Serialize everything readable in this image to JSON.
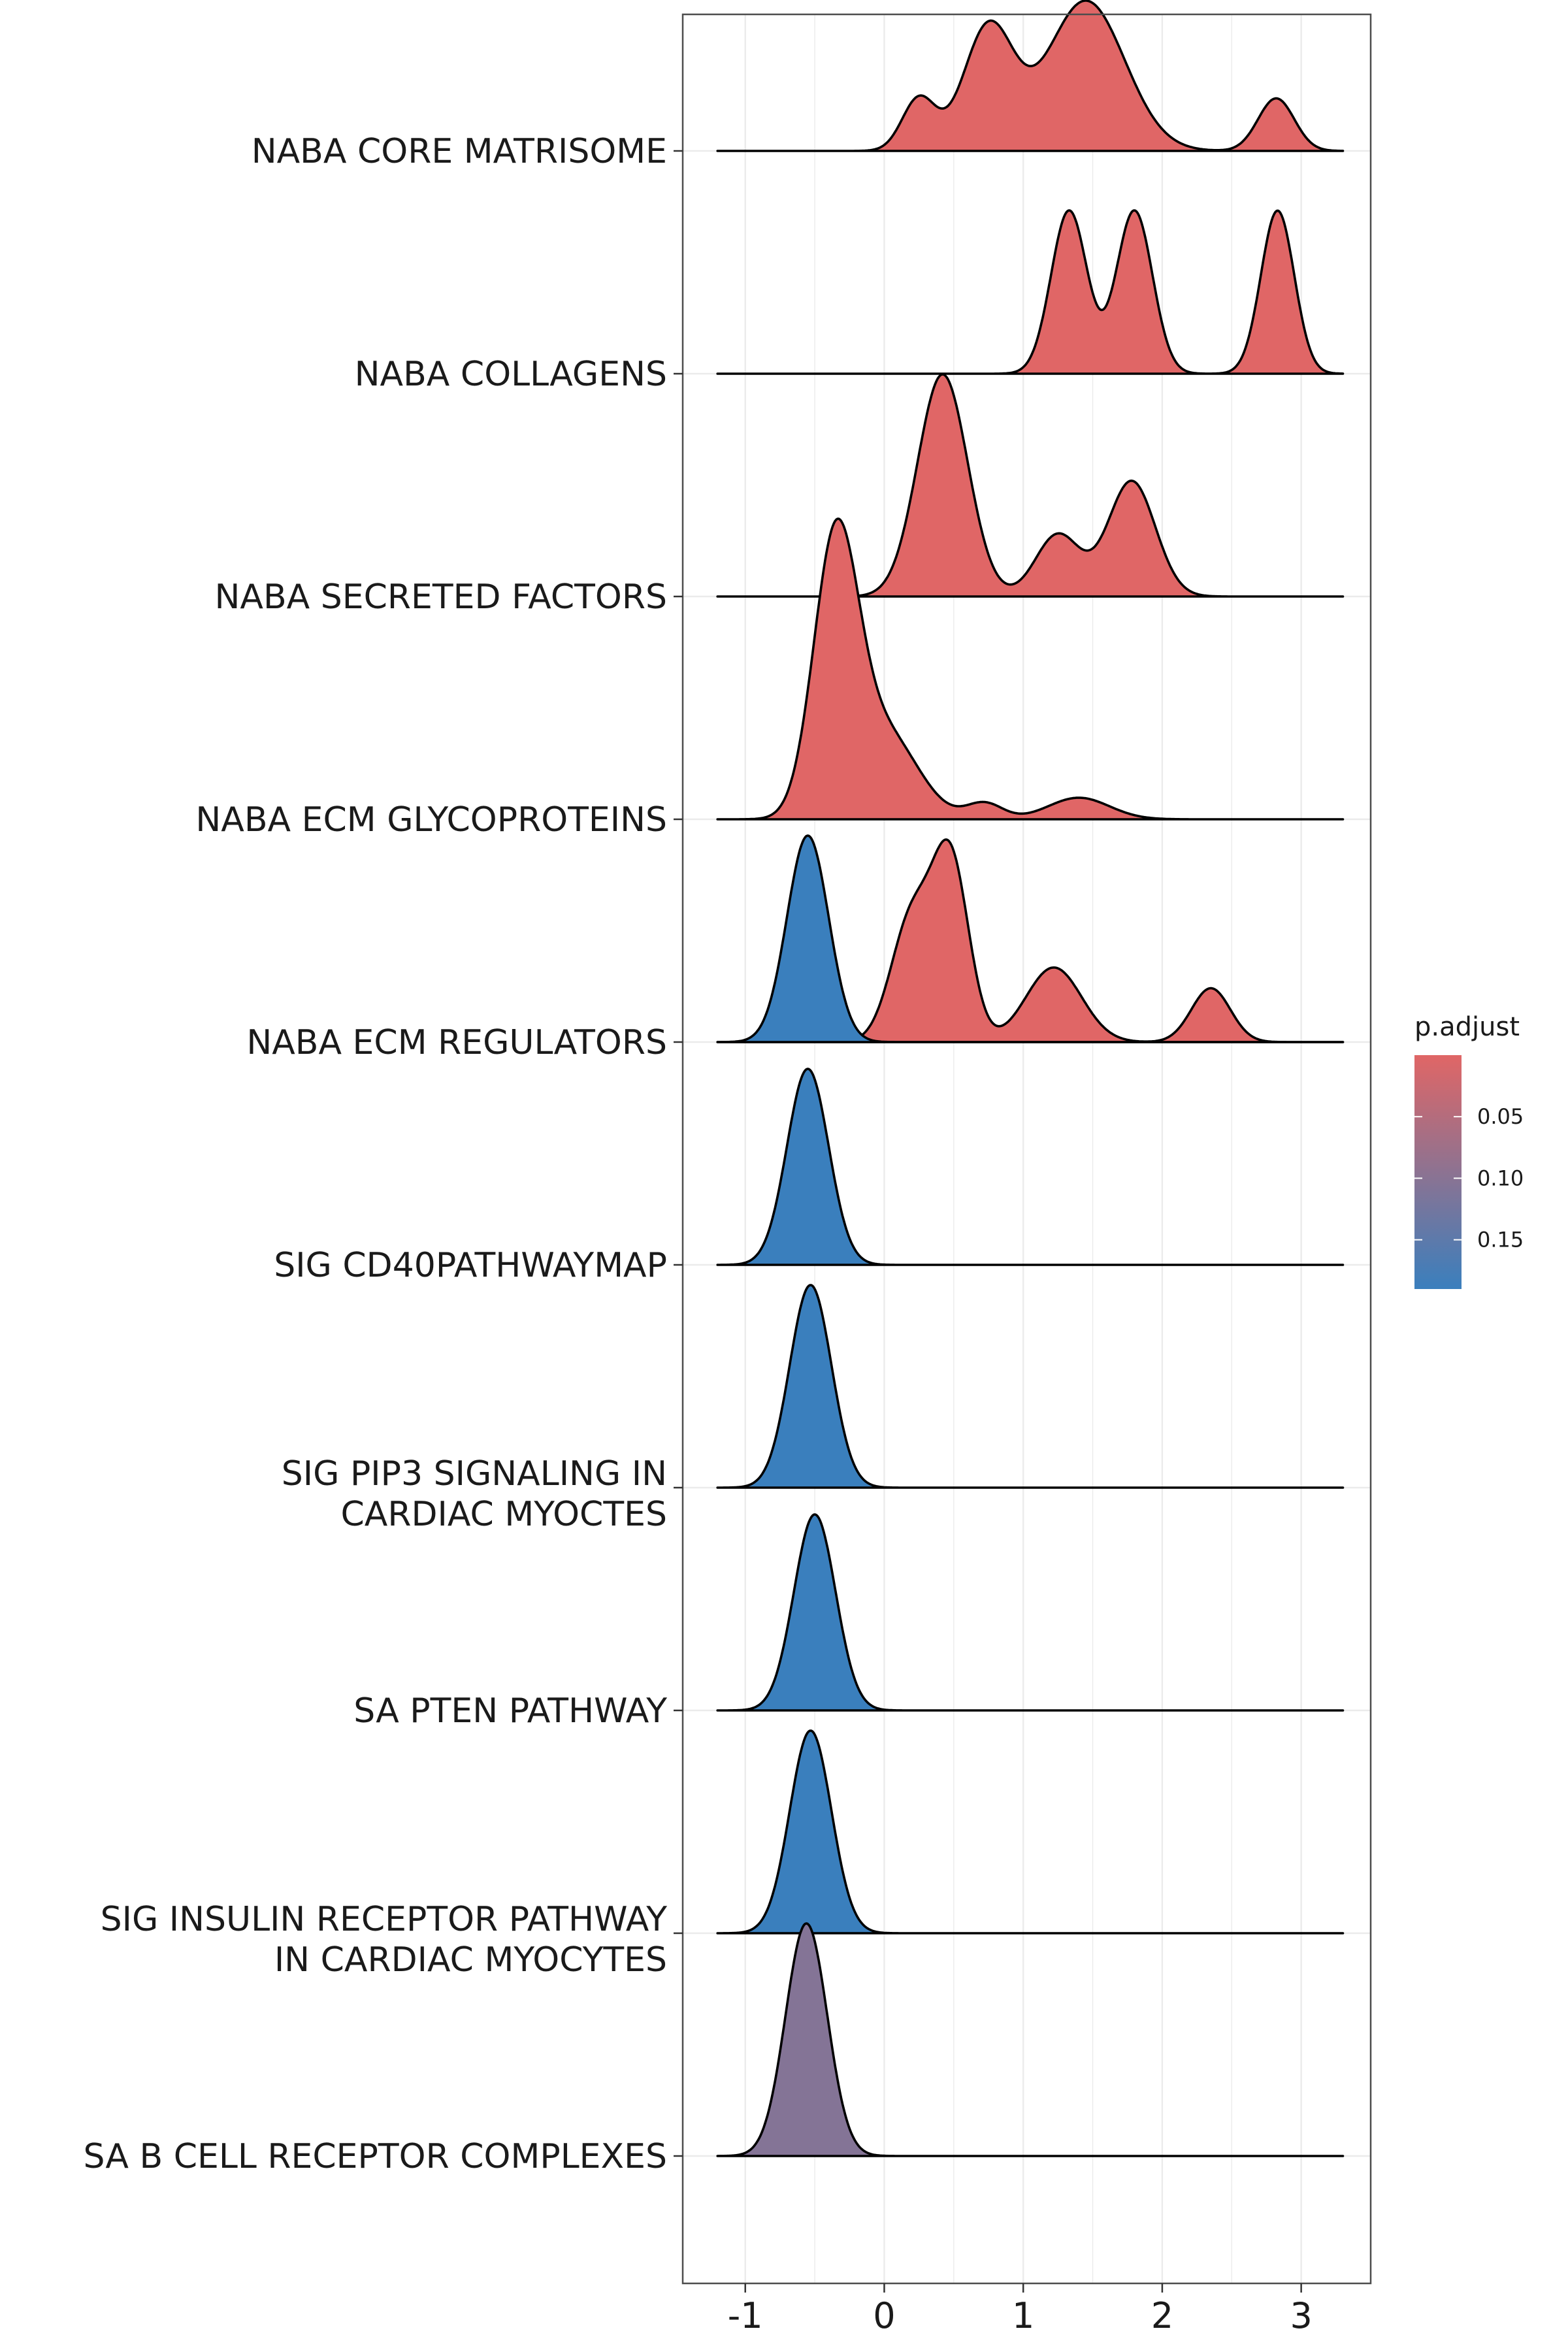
{
  "chart_data": {
    "type": "ridgeline",
    "xlim": [
      -1.45,
      3.5
    ],
    "x_ticks": [
      "-1",
      "0",
      "1",
      "2",
      "3"
    ],
    "x_tick_values": [
      -1,
      0,
      1,
      2,
      3
    ],
    "grid": true,
    "legend": {
      "title": "p.adjust",
      "position": "right",
      "range": [
        0.0,
        0.19
      ],
      "ticks": [
        {
          "value": 0.05,
          "label": "0.05"
        },
        {
          "value": 0.1,
          "label": "0.10"
        },
        {
          "value": 0.15,
          "label": "0.15"
        }
      ],
      "low_color": "#e06666",
      "high_color": "#3a7fbd"
    },
    "series": [
      {
        "label_lines": [
          "NABA CORE MATRISOME"
        ],
        "p_adjust": 0.0,
        "x_range": [
          -1.2,
          3.3
        ],
        "peak_height": 1.15,
        "components": [
          {
            "mu": 0.25,
            "sd": 0.12,
            "w": 0.35
          },
          {
            "mu": 0.75,
            "sd": 0.18,
            "w": 0.82
          },
          {
            "mu": 1.45,
            "sd": 0.28,
            "w": 1.0
          },
          {
            "mu": 2.82,
            "sd": 0.13,
            "w": 0.35
          }
        ]
      },
      {
        "label_lines": [
          "NABA COLLAGENS"
        ],
        "p_adjust": 0.0,
        "x_range": [
          -1.2,
          3.3
        ],
        "peak_height": 1.25,
        "components": [
          {
            "mu": 1.33,
            "sd": 0.13,
            "w": 1.0
          },
          {
            "mu": 1.8,
            "sd": 0.13,
            "w": 1.0
          },
          {
            "mu": 2.83,
            "sd": 0.12,
            "w": 1.0
          }
        ]
      },
      {
        "label_lines": [
          "NABA SECRETED FACTORS"
        ],
        "p_adjust": 0.0,
        "x_range": [
          -1.2,
          3.3
        ],
        "peak_height": 1.7,
        "components": [
          {
            "mu": 0.42,
            "sd": 0.18,
            "w": 1.0
          },
          {
            "mu": 1.25,
            "sd": 0.16,
            "w": 0.28
          },
          {
            "mu": 1.78,
            "sd": 0.17,
            "w": 0.52
          }
        ]
      },
      {
        "label_lines": [
          "NABA ECM GLYCOPROTEINS"
        ],
        "p_adjust": 0.0,
        "x_range": [
          -1.2,
          3.3
        ],
        "peak_height": 2.3,
        "components": [
          {
            "mu": -0.35,
            "sd": 0.16,
            "w": 1.0
          },
          {
            "mu": 0.0,
            "sd": 0.24,
            "w": 0.32
          },
          {
            "mu": 0.72,
            "sd": 0.13,
            "w": 0.06
          },
          {
            "mu": 1.4,
            "sd": 0.22,
            "w": 0.08
          }
        ]
      },
      {
        "label_lines": [
          "NABA ECM REGULATORS"
        ],
        "p_adjust": 0.0,
        "x_range": [
          -1.2,
          3.3
        ],
        "peak_height": 1.55,
        "components": [
          {
            "mu": 0.2,
            "sd": 0.15,
            "w": 0.6
          },
          {
            "mu": 0.48,
            "sd": 0.13,
            "w": 0.85
          },
          {
            "mu": 1.22,
            "sd": 0.2,
            "w": 0.36
          },
          {
            "mu": 2.35,
            "sd": 0.14,
            "w": 0.26
          }
        ]
      },
      {
        "label_lines": [
          "NABA ECM REGULATORS"
        ],
        "p_adjust": 0.19,
        "hidden_label": true,
        "x_range": [
          -1.2,
          3.3
        ],
        "peak_height": 1.58,
        "baseline_index": 4,
        "components": [
          {
            "mu": -0.55,
            "sd": 0.15,
            "w": 1.0
          }
        ]
      },
      {
        "label_lines": [
          "SIG CD40PATHWAYMAP"
        ],
        "p_adjust": 0.19,
        "x_range": [
          -1.2,
          3.3
        ],
        "peak_height": 1.5,
        "components": [
          {
            "mu": -0.55,
            "sd": 0.15,
            "w": 1.0
          }
        ]
      },
      {
        "label_lines": [
          "SIG PIP3 SIGNALING IN",
          "CARDIAC MYOCTES"
        ],
        "p_adjust": 0.19,
        "x_range": [
          -1.2,
          3.3
        ],
        "peak_height": 1.55,
        "components": [
          {
            "mu": -0.53,
            "sd": 0.15,
            "w": 1.0
          }
        ]
      },
      {
        "label_lines": [
          "SA PTEN PATHWAY"
        ],
        "p_adjust": 0.19,
        "x_range": [
          -1.2,
          3.3
        ],
        "peak_height": 1.5,
        "components": [
          {
            "mu": -0.5,
            "sd": 0.15,
            "w": 1.0
          }
        ]
      },
      {
        "label_lines": [
          "SIG INSULIN RECEPTOR PATHWAY",
          "IN CARDIAC MYOCYTES"
        ],
        "p_adjust": 0.19,
        "x_range": [
          -1.2,
          3.3
        ],
        "peak_height": 1.55,
        "components": [
          {
            "mu": -0.53,
            "sd": 0.15,
            "w": 1.0
          }
        ]
      },
      {
        "label_lines": [
          "SA B CELL RECEPTOR COMPLEXES"
        ],
        "p_adjust": 0.105,
        "x_range": [
          -1.2,
          3.3
        ],
        "peak_height": 1.78,
        "components": [
          {
            "mu": -0.56,
            "sd": 0.15,
            "w": 1.0
          }
        ]
      }
    ]
  }
}
